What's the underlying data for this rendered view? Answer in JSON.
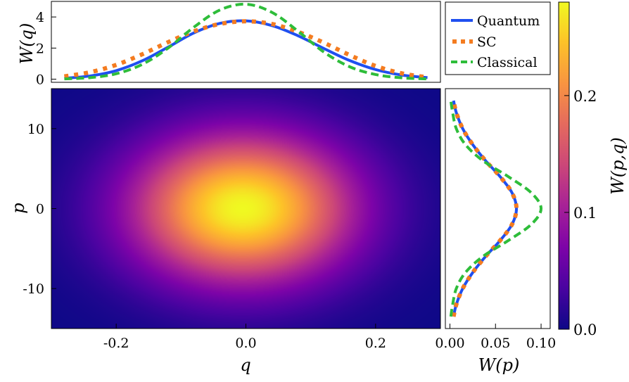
{
  "chart_data": [
    {
      "type": "line",
      "panel": "top-marginal",
      "ylabel": "W(q)",
      "xlim": [
        -0.3,
        0.3
      ],
      "ylim": [
        -0.2,
        5.0
      ],
      "yticks": [
        0,
        2,
        4
      ],
      "ytick_labels": [
        "0",
        "2",
        "4"
      ],
      "series": [
        {
          "name": "Quantum",
          "style": "solid",
          "color": "#1f4ff0",
          "x": [
            -0.28,
            -0.24,
            -0.2,
            -0.16,
            -0.12,
            -0.08,
            -0.04,
            0.0,
            0.04,
            0.08,
            0.12,
            0.16,
            0.2,
            0.24,
            0.28
          ],
          "values": [
            0.06,
            0.21,
            0.55,
            1.18,
            2.06,
            2.98,
            3.59,
            3.75,
            3.45,
            2.8,
            1.98,
            1.2,
            0.62,
            0.27,
            0.1
          ]
        },
        {
          "name": "SC",
          "style": "dotted",
          "color": "#f47c20",
          "x": [
            -0.28,
            -0.24,
            -0.2,
            -0.16,
            -0.12,
            -0.08,
            -0.04,
            0.0,
            0.04,
            0.08,
            0.12,
            0.16,
            0.2,
            0.24,
            0.28
          ],
          "values": [
            0.18,
            0.45,
            0.92,
            1.6,
            2.38,
            3.08,
            3.55,
            3.72,
            3.55,
            3.05,
            2.35,
            1.55,
            0.85,
            0.38,
            0.12
          ]
        },
        {
          "name": "Classical",
          "style": "dashed",
          "color": "#2ebd3a",
          "x": [
            -0.28,
            -0.24,
            -0.2,
            -0.16,
            -0.12,
            -0.08,
            -0.04,
            0.0,
            0.04,
            0.08,
            0.12,
            0.16,
            0.2,
            0.24,
            0.28
          ],
          "values": [
            0.02,
            0.1,
            0.35,
            0.95,
            2.0,
            3.35,
            4.45,
            4.82,
            4.3,
            3.1,
            1.75,
            0.8,
            0.3,
            0.09,
            0.02
          ]
        }
      ]
    },
    {
      "type": "heatmap",
      "panel": "main",
      "xlabel": "q",
      "ylabel": "p",
      "xlim": [
        -0.3,
        0.3
      ],
      "ylim": [
        -15,
        15
      ],
      "xticks": [
        -0.2,
        0.0,
        0.2
      ],
      "xtick_labels": [
        "-0.2",
        "0.0",
        "0.2"
      ],
      "yticks": [
        10,
        0,
        -10
      ],
      "ytick_labels": [
        "10",
        "0",
        "-10"
      ],
      "center": [
        -0.005,
        0
      ],
      "sigma_q": 0.12,
      "sigma_p": 6.5,
      "peak": 0.28,
      "colormap": "plasma"
    },
    {
      "type": "line",
      "panel": "right-marginal",
      "xlabel": "W(p)",
      "xlim": [
        -0.005,
        0.11
      ],
      "ylim": [
        -15,
        15
      ],
      "xticks": [
        0.0,
        0.05,
        0.1
      ],
      "xtick_labels": [
        "0.00",
        "0.05",
        "0.10"
      ],
      "series": [
        {
          "name": "Quantum",
          "style": "solid",
          "color": "#1f4ff0",
          "p": [
            -13.5,
            -12,
            -10,
            -8,
            -6,
            -4,
            -2,
            0,
            2,
            4,
            6,
            8,
            10,
            12,
            13.5
          ],
          "values": [
            0.004,
            0.007,
            0.014,
            0.025,
            0.039,
            0.055,
            0.068,
            0.073,
            0.068,
            0.055,
            0.039,
            0.025,
            0.014,
            0.007,
            0.004
          ]
        },
        {
          "name": "SC",
          "style": "dotted",
          "color": "#f47c20",
          "p": [
            -13.5,
            -12,
            -10,
            -8,
            -6,
            -4,
            -2,
            0,
            2,
            4,
            6,
            8,
            10,
            12,
            13.5
          ],
          "values": [
            0.004,
            0.007,
            0.014,
            0.025,
            0.039,
            0.055,
            0.068,
            0.073,
            0.068,
            0.055,
            0.039,
            0.025,
            0.014,
            0.007,
            0.004
          ]
        },
        {
          "name": "Classical",
          "style": "dashed",
          "color": "#2ebd3a",
          "p": [
            -13.5,
            -12,
            -10,
            -8,
            -6,
            -4,
            -2,
            0,
            2,
            4,
            6,
            8,
            10,
            12,
            13.5
          ],
          "values": [
            0.001,
            0.003,
            0.007,
            0.017,
            0.036,
            0.064,
            0.089,
            0.1,
            0.089,
            0.064,
            0.036,
            0.017,
            0.007,
            0.003,
            0.001
          ]
        }
      ]
    },
    {
      "type": "colorbar",
      "label": "W(p,q)",
      "range": [
        0.0,
        0.28
      ],
      "ticks": [
        0.0,
        0.1,
        0.2
      ],
      "tick_labels": [
        "0.0",
        "0.1",
        "0.2"
      ],
      "colormap": "plasma"
    }
  ],
  "legend": {
    "placement": "top-right",
    "entries": [
      "Quantum",
      "SC",
      "Classical"
    ]
  }
}
